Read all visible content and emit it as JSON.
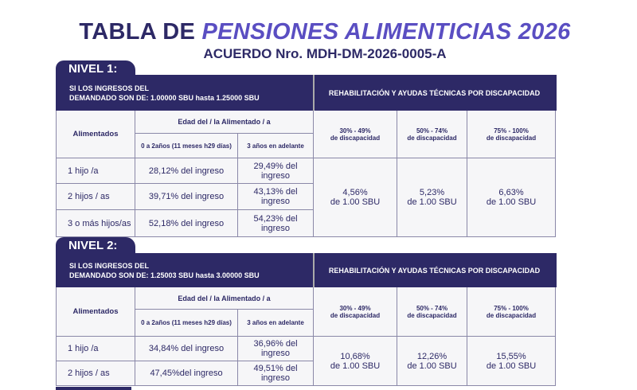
{
  "title": {
    "plain": "TABLA DE ",
    "italic": "PENSIONES ALIMENTICIAS 2026"
  },
  "subtitle": "ACUERDO Nro. MDH-DM-2026-0005-A",
  "colors": {
    "primary": "#2d2966",
    "accent": "#5a4ec2",
    "cell": "#f6f6f8"
  },
  "levels": [
    {
      "name": "NIVEL 1:",
      "income_line1": "SI LOS INGRESOS DEL",
      "income_line2": "DEMANDADO SON DE: 1.00000 SBU hasta 1.25000 SBU",
      "disability_header": "REHABILITACIÓN Y AYUDAS TÉCNICAS POR DISCAPACIDAD",
      "age_header": "Edad del / la  Alimentado / a",
      "rows_header": "Alimentados",
      "age_cols": [
        "0 a 2años (11 meses h29 días)",
        "3 años en adelante"
      ],
      "disability_cols": [
        {
          "range": "30% - 49%",
          "label": "de discapacidad",
          "value": "4,56%",
          "unit": "de 1.00 SBU"
        },
        {
          "range": "50% - 74%",
          "label": "de discapacidad",
          "value": "5,23%",
          "unit": "de 1.00 SBU"
        },
        {
          "range": "75% - 100%",
          "label": "de discapacidad",
          "value": "6,63%",
          "unit": "de 1.00 SBU"
        }
      ],
      "rows": [
        {
          "label": "1 hijo /a",
          "c1": "28,12% del ingreso",
          "c2": "29,49% del ingreso"
        },
        {
          "label": "2 hijos / as",
          "c1": "39,71% del ingreso",
          "c2": "43,13% del ingreso"
        },
        {
          "label": "3 o más hijos/as",
          "c1": "52,18% del ingreso",
          "c2": "54,23% del ingreso"
        }
      ]
    },
    {
      "name": "NIVEL 2:",
      "income_line1": "SI LOS INGRESOS DEL",
      "income_line2": "DEMANDADO SON DE: 1.25003 SBU hasta 3.00000 SBU",
      "disability_header": "REHABILITACIÓN Y AYUDAS TÉCNICAS POR DISCAPACIDAD",
      "age_header": "Edad del / la  Alimentado / a",
      "rows_header": "Alimentados",
      "age_cols": [
        "0 a 2años (11 meses h29 días)",
        "3 años en adelante"
      ],
      "disability_cols": [
        {
          "range": "30% - 49%",
          "label": "de discapacidad",
          "value": "10,68%",
          "unit": "de 1.00 SBU"
        },
        {
          "range": "50% - 74%",
          "label": "de discapacidad",
          "value": "12,26%",
          "unit": "de 1.00 SBU"
        },
        {
          "range": "75% - 100%",
          "label": "de discapacidad",
          "value": "15,55%",
          "unit": "de 1.00 SBU"
        }
      ],
      "rows": [
        {
          "label": "1 hijo /a",
          "c1": "34,84% del ingreso",
          "c2": "36,96% del ingreso"
        },
        {
          "label": "2 hijos / as",
          "c1": "47,45%del ingreso",
          "c2": "49,51% del ingreso"
        }
      ]
    }
  ]
}
